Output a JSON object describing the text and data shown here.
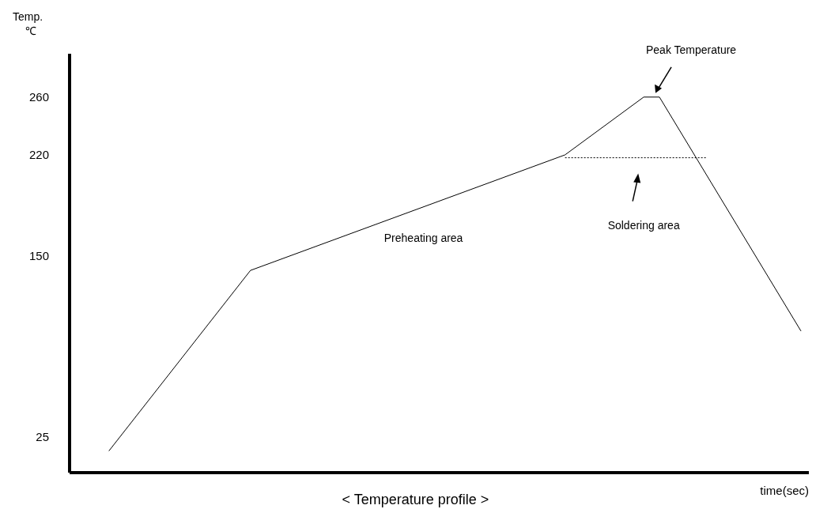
{
  "chart_data": {
    "type": "line",
    "title": "< Temperature profile >",
    "xlabel": "time(sec)",
    "ylabel": "Temp. ℃",
    "categories": [
      null,
      null,
      null,
      null,
      null,
      null,
      null,
      null,
      null,
      null,
      null,
      null,
      null,
      null,
      null,
      null,
      null,
      null,
      null,
      null,
      null,
      null,
      null,
      null,
      null,
      null,
      null,
      null,
      null,
      null,
      null,
      null,
      null,
      null,
      null,
      null,
      null,
      null,
      null,
      null,
      null,
      null,
      null,
      null,
      null,
      null,
      null
    ],
    "series": [
      {
        "color": "#000000",
        "line_style": "solid",
        "values": [
          null,
          null,
          15,
          null,
          null,
          null,
          null,
          null,
          null,
          null,
          null,
          140,
          null,
          null,
          null,
          null,
          null,
          null,
          null,
          null,
          null,
          null,
          null,
          null,
          null,
          null,
          null,
          null,
          null,
          null,
          null,
          220,
          null,
          null,
          null,
          null,
          260,
          260,
          null,
          null,
          null,
          null,
          null,
          null,
          null,
          null,
          98
        ]
      },
      {
        "color": "#000000",
        "line_style": "dotted",
        "values": [
          null,
          null,
          null,
          null,
          null,
          null,
          null,
          null,
          null,
          null,
          null,
          null,
          null,
          null,
          null,
          null,
          null,
          null,
          null,
          null,
          null,
          null,
          null,
          null,
          null,
          null,
          null,
          null,
          null,
          null,
          null,
          218,
          null,
          null,
          null,
          null,
          null,
          null,
          null,
          null,
          218,
          null,
          null,
          null,
          null,
          null,
          null
        ]
      }
    ],
    "ylim": [
      0,
      290
    ],
    "yticks": [
      25,
      150,
      220,
      260
    ],
    "marker": "none",
    "grid": false,
    "annotations": [
      "Peak Temperature",
      "Soldering area",
      "Preheating area"
    ]
  }
}
